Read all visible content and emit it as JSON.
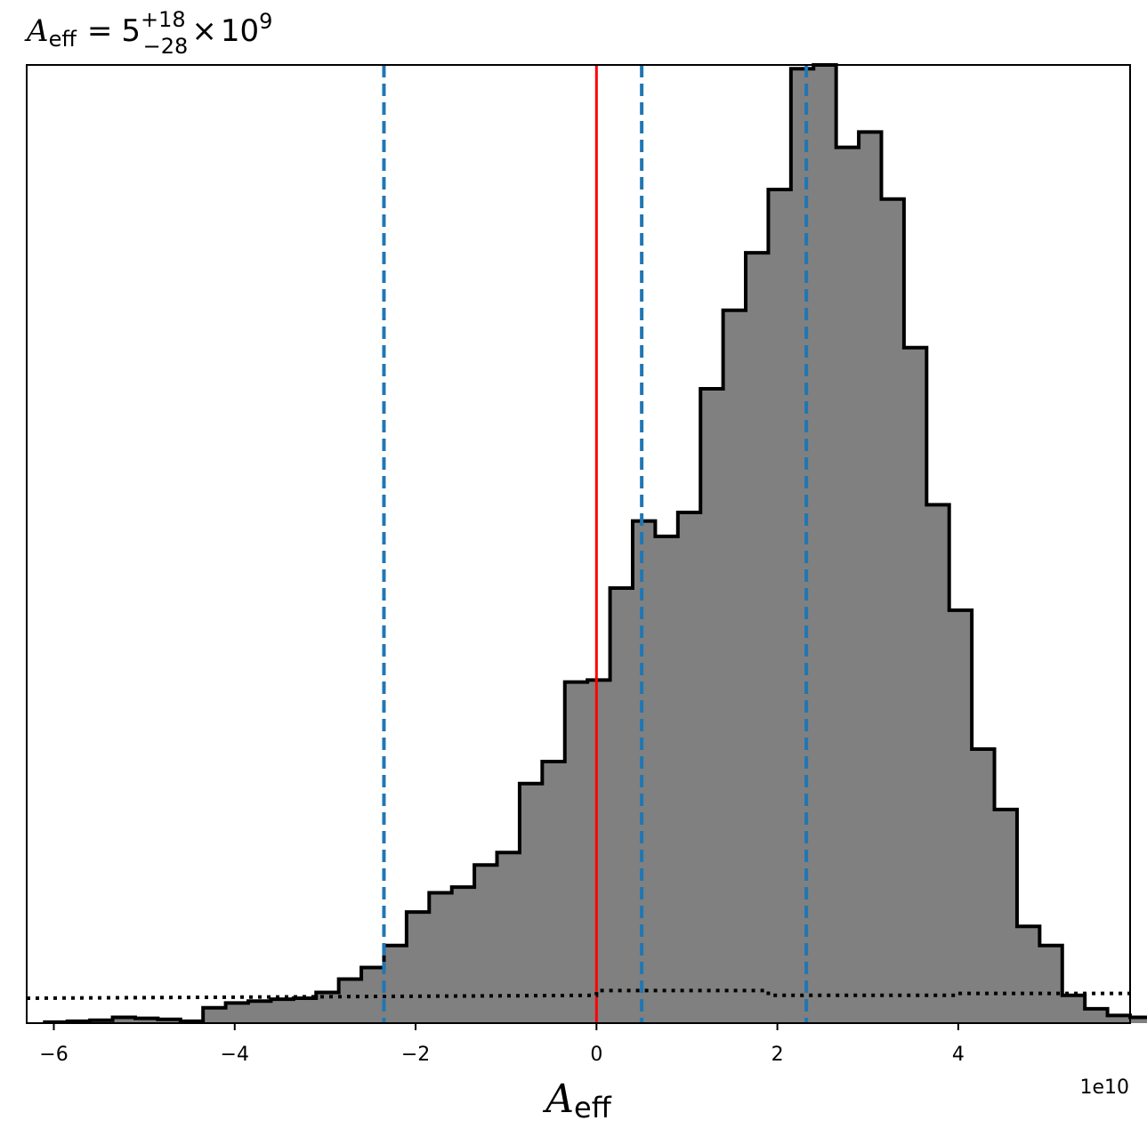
{
  "chart_data": {
    "type": "bar",
    "title": {
      "symbol": "A",
      "subscript": "eff",
      "equals": "=",
      "value": "5",
      "upper": "+18",
      "lower": "−28",
      "times": "×",
      "base": "10",
      "exponent": "9"
    },
    "xlabel": {
      "symbol": "A",
      "subscript": "eff"
    },
    "x_offset_label": "1e10",
    "xlim": [
      -6.3,
      5.9
    ],
    "ylim": [
      0,
      1.0
    ],
    "x_ticks": [
      {
        "value": -6,
        "label": "−6"
      },
      {
        "value": -4,
        "label": "−4"
      },
      {
        "value": -2,
        "label": "−2"
      },
      {
        "value": 0,
        "label": "0"
      },
      {
        "value": 2,
        "label": "2"
      },
      {
        "value": 4,
        "label": "4"
      }
    ],
    "histogram": {
      "bin_start": -6.1,
      "bin_width": 0.25,
      "fill_color": "#808080",
      "edge_color": "#000000",
      "values": [
        0.001,
        0.002,
        0.003,
        0.006,
        0.005,
        0.004,
        0.002,
        0.016,
        0.021,
        0.023,
        0.025,
        0.026,
        0.032,
        0.046,
        0.058,
        0.081,
        0.116,
        0.136,
        0.142,
        0.165,
        0.178,
        0.25,
        0.273,
        0.356,
        0.358,
        0.454,
        0.524,
        0.508,
        0.533,
        0.662,
        0.744,
        0.804,
        0.87,
        0.996,
        1.0,
        0.914,
        0.93,
        0.86,
        0.705,
        0.541,
        0.431,
        0.286,
        0.223,
        0.101,
        0.081,
        0.029,
        0.015,
        0.008,
        0.006,
        0.001,
        0.0,
        0.002,
        0.001,
        0.0,
        0.0
      ]
    },
    "reference_lines": [
      {
        "x": 0,
        "style": "solid",
        "color": "#ff0000"
      }
    ],
    "quantile_lines": [
      {
        "x": -2.35,
        "style": "dashed",
        "color": "#1f77b4"
      },
      {
        "x": 0.5,
        "style": "dashed",
        "color": "#1f77b4"
      },
      {
        "x": 2.32,
        "style": "dashed",
        "color": "#1f77b4"
      }
    ],
    "prior_line": {
      "style": "dotted",
      "color": "#000000",
      "points": [
        {
          "x": -6.3,
          "y": 0.026
        },
        {
          "x": 0.0,
          "y": 0.029
        },
        {
          "x": 0.0,
          "y": 0.034
        },
        {
          "x": 1.9,
          "y": 0.034
        },
        {
          "x": 1.9,
          "y": 0.029
        },
        {
          "x": 4.0,
          "y": 0.029
        },
        {
          "x": 4.0,
          "y": 0.031
        },
        {
          "x": 5.9,
          "y": 0.031
        }
      ]
    },
    "grid": false,
    "legend": "none"
  }
}
